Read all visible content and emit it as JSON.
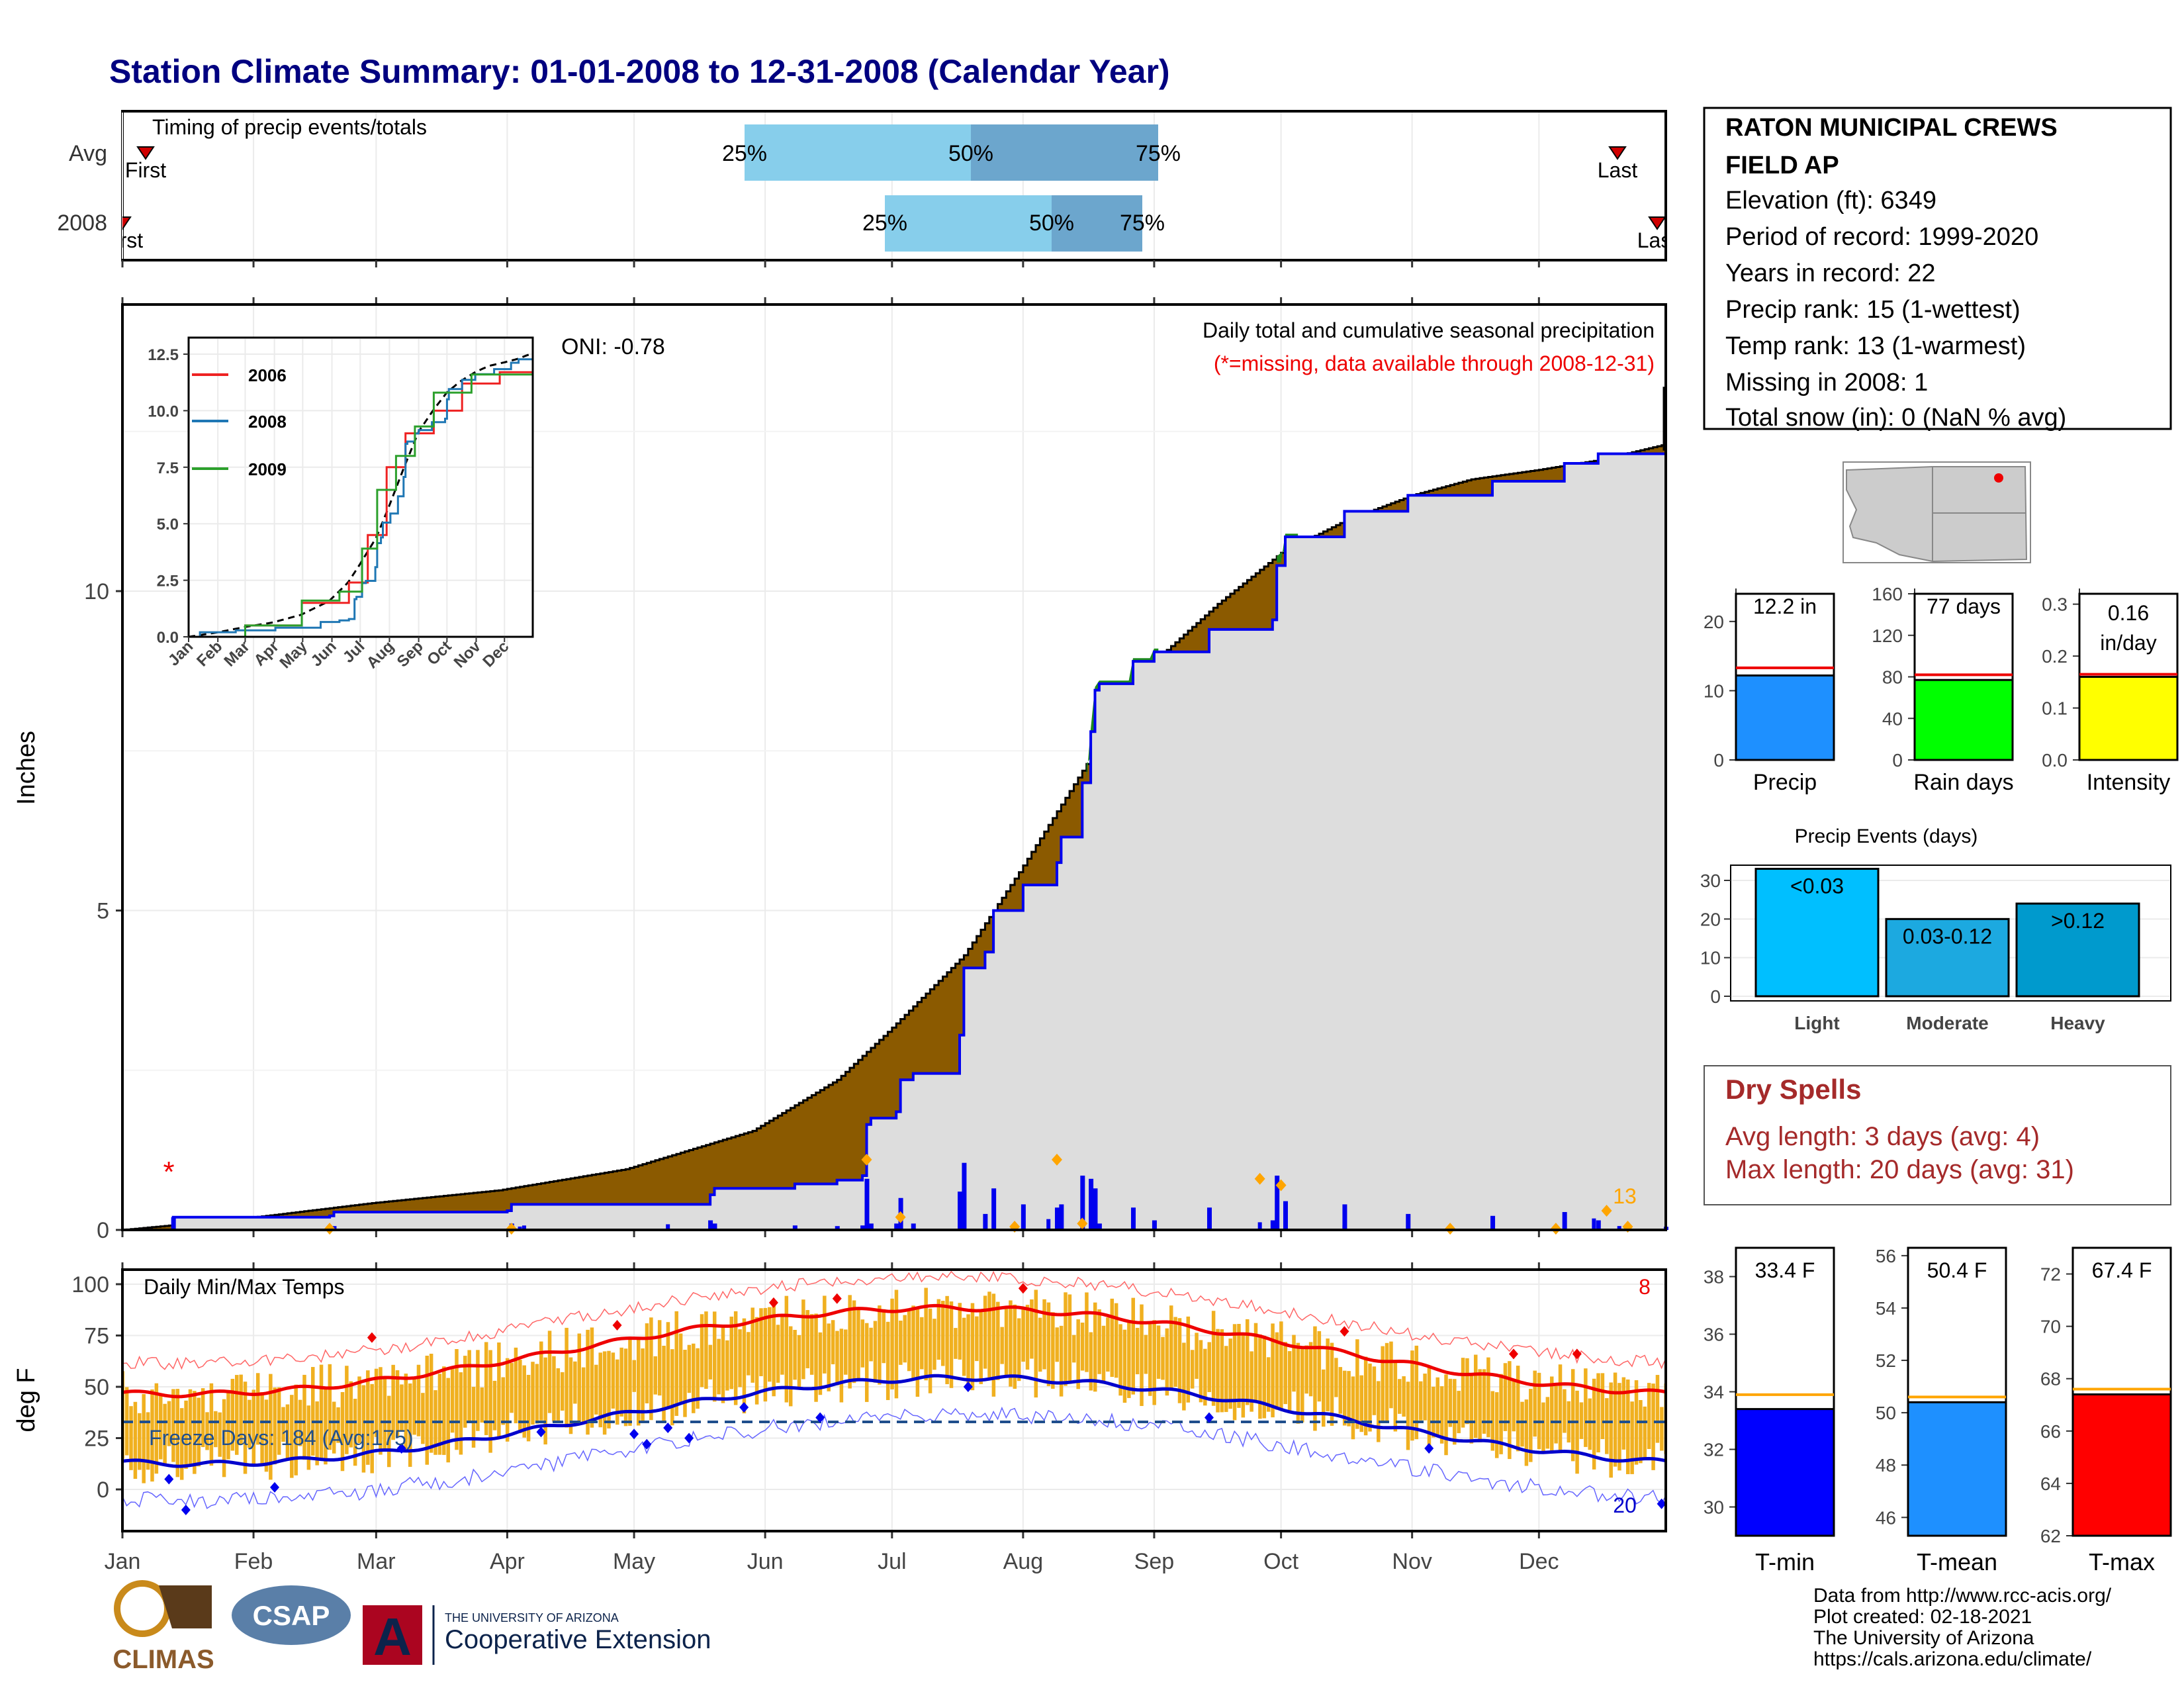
{
  "title": "Station Climate Summary: 01-01-2008 to 12-31-2008 (Calendar Year)",
  "colors": {
    "title": "#000080",
    "cum_fill": "#8B5A00",
    "cum_below_avg": "#1E8A1E",
    "ytd_fill": "#DDDDDD",
    "ytd_line": "#0000EE",
    "daily_bar": "#0000EE",
    "quartile_light": "#87CEEB",
    "quartile_dark": "#6CA6CD",
    "temp_range": "#F0B020",
    "tmax": "#EE0000",
    "tmin": "#0000CC",
    "extreme_marker": "#FFA500",
    "dry_spell_text": "#A52A2A"
  },
  "timing_panel": {
    "label": "Timing of precip events/totals",
    "rows": [
      "Avg",
      "2008"
    ],
    "avg": {
      "first_label": "First",
      "last_label": "Last",
      "p25": "25%",
      "p50": "50%",
      "p75": "75%"
    },
    "y2008": {
      "first_label": "First",
      "last_label": "Last",
      "p25": "25%",
      "p50": "50%",
      "p75": "75%"
    }
  },
  "precip_panel": {
    "ylabel": "Inches",
    "legend_line1": "Daily total and cumulative seasonal precipitation",
    "legend_line2": "(*=missing, data available through 2008-12-31)",
    "oni": "ONI: -0.78",
    "missing_marker": "*",
    "extreme_count": "13",
    "yticks": [
      "0",
      "5",
      "10"
    ]
  },
  "inset": {
    "legend": [
      "2006",
      "2008",
      "2009"
    ],
    "yticks": [
      "0.0",
      "2.5",
      "5.0",
      "7.5",
      "10.0",
      "12.5"
    ],
    "xticks": [
      "Jan",
      "Feb",
      "Mar",
      "Apr",
      "May",
      "Jun",
      "Jul",
      "Aug",
      "Sep",
      "Oct",
      "Nov",
      "Dec"
    ]
  },
  "temp_panel": {
    "ylabel": "deg F",
    "label": "Daily Min/Max Temps",
    "freeze": "Freeze Days: 184 (Avg:175)",
    "hot_count": "8",
    "cold_count": "20",
    "yticks": [
      "0",
      "25",
      "50",
      "75",
      "100"
    ]
  },
  "x_months": [
    "Jan",
    "Feb",
    "Mar",
    "Apr",
    "May",
    "Jun",
    "Jul",
    "Aug",
    "Sep",
    "Oct",
    "Nov",
    "Dec"
  ],
  "station_info": {
    "name_line1": "RATON MUNICIPAL CREWS",
    "name_line2": "FIELD AP",
    "lines": [
      "Elevation (ft): 6349",
      "Period of record: 1999-2020",
      "Years in record: 22",
      "Precip rank: 15 (1-wettest)",
      "Temp rank: 13 (1-warmest)",
      "Missing in 2008: 1",
      "Total snow (in): 0 (NaN % avg)"
    ]
  },
  "summary_bars": [
    {
      "label": "Precip",
      "value_text": "12.2 in",
      "color": "#1E90FF",
      "yticks": [
        "0",
        "10",
        "20"
      ]
    },
    {
      "label": "Rain days",
      "value_text": "77 days",
      "color": "#00FF00",
      "yticks": [
        "0",
        "40",
        "80",
        "120",
        "160"
      ]
    },
    {
      "label": "Intensity",
      "value_text": "0.16",
      "value_text2": "in/day",
      "color": "#FFFF00",
      "yticks": [
        "0.0",
        "0.1",
        "0.2",
        "0.3"
      ]
    }
  ],
  "precip_events": {
    "title": "Precip Events (days)",
    "yticks": [
      "0",
      "10",
      "20",
      "30"
    ],
    "bars": [
      {
        "category": "Light",
        "label": "<0.03",
        "value": 33,
        "color": "#00BFFF"
      },
      {
        "category": "Moderate",
        "label": "0.03-0.12",
        "value": 20,
        "color": "#1CA9E0"
      },
      {
        "category": "Heavy",
        "label": ">0.12",
        "value": 24,
        "color": "#009ACD"
      }
    ]
  },
  "dry_spells": {
    "title": "Dry Spells",
    "avg": "Avg length: 3 days (avg: 4)",
    "max": "Max length: 20 days (avg: 31)"
  },
  "temp_bars": [
    {
      "label": "T-min",
      "value_text": "33.4 F",
      "color": "#0000FF",
      "yticks": [
        "30",
        "32",
        "34",
        "36",
        "38"
      ]
    },
    {
      "label": "T-mean",
      "value_text": "50.4 F",
      "color": "#1E90FF",
      "yticks": [
        "46",
        "48",
        "50",
        "52",
        "54",
        "56"
      ]
    },
    {
      "label": "T-max",
      "value_text": "67.4 F",
      "color": "#FF0000",
      "yticks": [
        "62",
        "64",
        "66",
        "68",
        "70",
        "72"
      ]
    }
  ],
  "footer": {
    "lines": [
      "Data from http://www.rcc-acis.org/",
      "Plot created: 02-18-2021",
      "The University of Arizona",
      "https://cals.arizona.edu/climate/"
    ],
    "logo_climas": "CLIMAS",
    "logo_csap": "CSAP",
    "logo_ua_small": "THE UNIVERSITY OF ARIZONA",
    "logo_ua_big": "Cooperative Extension"
  },
  "chart_data": [
    {
      "type": "area",
      "title": "Daily total and cumulative seasonal precipitation",
      "ylabel": "Inches",
      "ylim": [
        0,
        13.5
      ],
      "x": [
        "Jan",
        "Feb",
        "Mar",
        "Apr",
        "May",
        "Jun",
        "Jul",
        "Aug",
        "Sep",
        "Oct",
        "Nov",
        "Dec",
        "Dec-31"
      ],
      "series": [
        {
          "name": "2008",
          "values": [
            0.0,
            0.25,
            0.5,
            0.6,
            0.85,
            1.7,
            2.0,
            5.7,
            9.4,
            10.5,
            11.7,
            11.9,
            12.2
          ]
        }
      ]
    },
    {
      "type": "line",
      "xlim": [
        1,
        366
      ],
      "ylim": [
        -20,
        105
      ],
      "x": [
        15,
        45,
        74,
        105,
        135,
        166,
        196,
        227,
        258,
        288,
        319,
        349
      ],
      "series": [
        {
          "name": "Tmax",
          "values": [
            45,
            50,
            56,
            66,
            74,
            84,
            88,
            87,
            80,
            68,
            56,
            46
          ]
        },
        {
          "name": "Tmin",
          "values": [
            15,
            18,
            24,
            31,
            39,
            48,
            55,
            54,
            46,
            33,
            22,
            14
          ]
        }
      ]
    }
  ]
}
